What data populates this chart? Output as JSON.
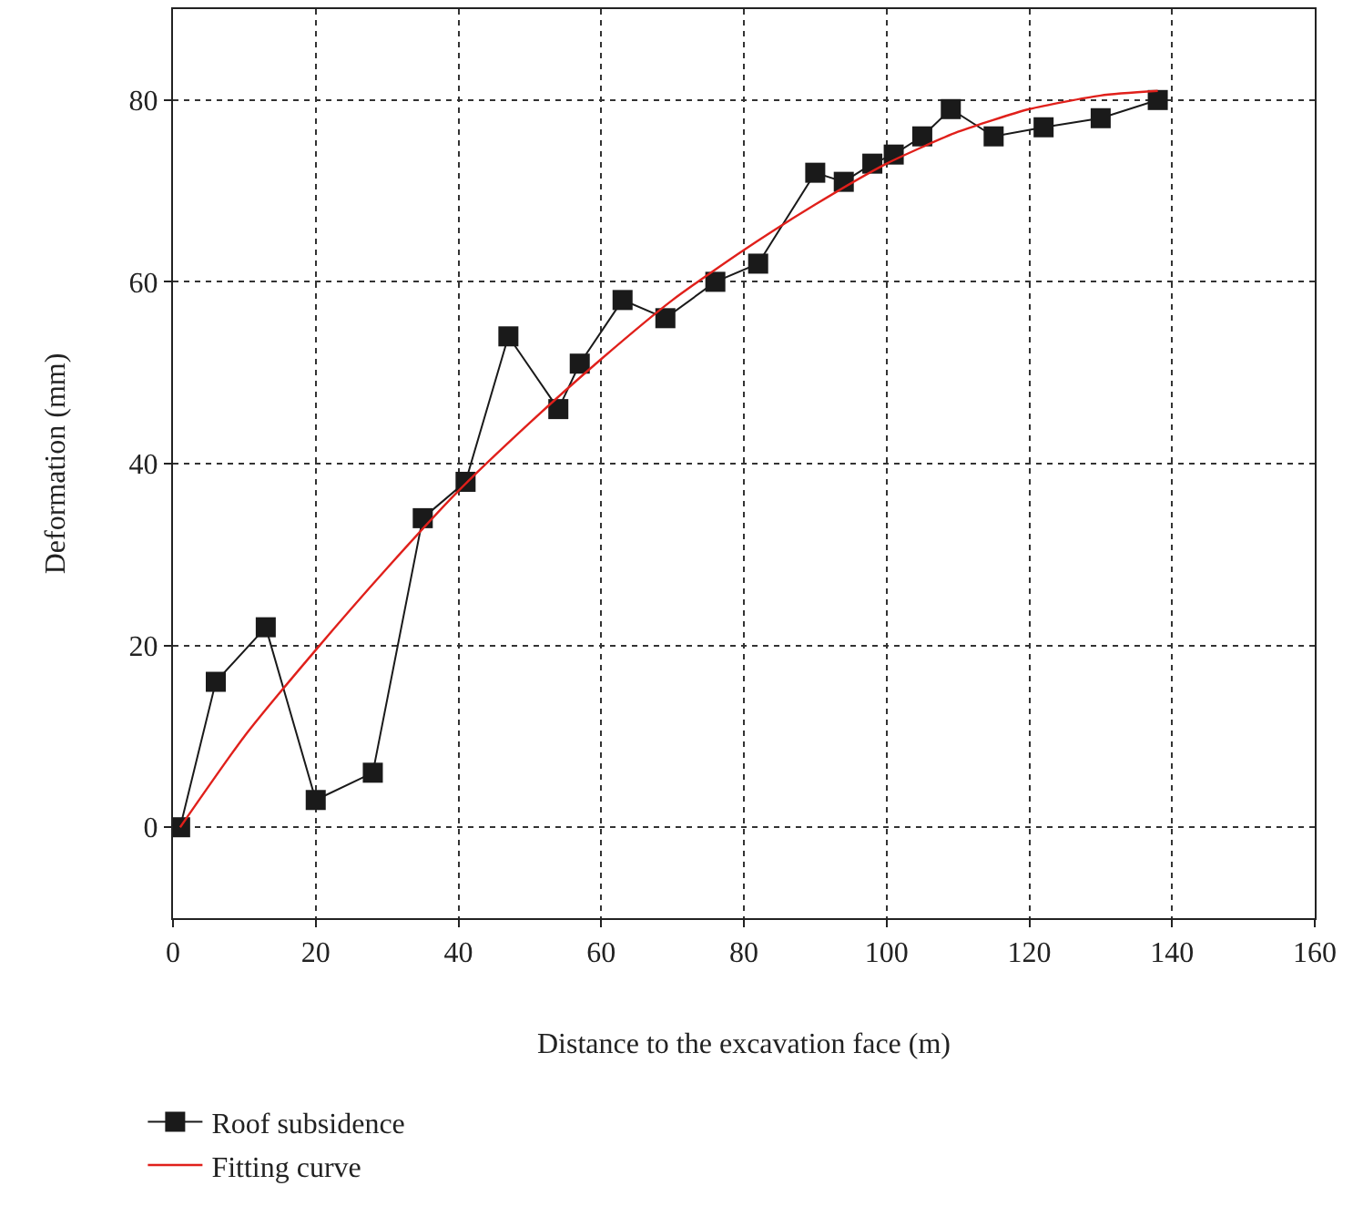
{
  "chart_data": {
    "type": "line",
    "xlabel": "Distance to the excavation face (m)",
    "ylabel": "Deformation (mm)",
    "xlim": [
      0,
      160
    ],
    "xticks": [
      0,
      20,
      40,
      60,
      80,
      100,
      120,
      140,
      160
    ],
    "ylim": [
      -10,
      90
    ],
    "yticks": [
      0,
      20,
      40,
      60,
      80
    ],
    "grid": true,
    "legend": "bottom left",
    "marker": "square",
    "line_style": "solid",
    "series": [
      {
        "name": "Roof subsidence",
        "color": "#1a1a1a",
        "x": [
          1,
          6,
          13,
          20,
          28,
          35,
          41,
          47,
          54,
          57,
          63,
          69,
          76,
          82,
          90,
          94,
          98,
          101,
          105,
          109,
          115,
          122,
          130,
          138
        ],
        "values": [
          0,
          16,
          22,
          3,
          6,
          34,
          38,
          54,
          46,
          51,
          58,
          56,
          60,
          62,
          72,
          71,
          73,
          74,
          76,
          79,
          76,
          77,
          78,
          80
        ]
      },
      {
        "name": "Fitting curve",
        "color": "#e0201b",
        "type": "line",
        "marker": "none",
        "x": [
          1,
          10,
          20,
          30,
          40,
          50,
          60,
          70,
          80,
          90,
          100,
          110,
          120,
          130,
          138
        ],
        "values": [
          0,
          10,
          19.5,
          28.5,
          37,
          44.5,
          51.5,
          58,
          63.5,
          68.5,
          73,
          76.5,
          79,
          80.5,
          81
        ]
      }
    ]
  }
}
